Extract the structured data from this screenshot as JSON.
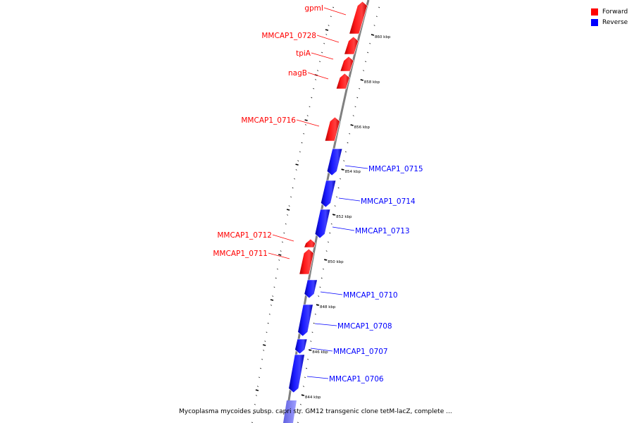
{
  "caption": "Mycoplasma mycoides subsp. capri str. GM12 transgenic clone tetM-lacZ, complete ...",
  "legend": [
    {
      "label": "Forward",
      "color": "#ff0000"
    },
    {
      "label": "Reverse",
      "color": "#0000ff"
    }
  ],
  "colors": {
    "forward": "#ff0000",
    "reverse": "#0000ff",
    "backbone": "#808080"
  },
  "ticks": [
    "860 kbp",
    "858 kbp",
    "856 kbp",
    "854 kbp",
    "852 kbp",
    "850 kbp",
    "848 kbp",
    "846 kbp",
    "844 kbp"
  ],
  "genes": [
    {
      "name": "gpmI",
      "strand": "forward"
    },
    {
      "name": "MMCAP1_0728",
      "strand": "forward"
    },
    {
      "name": "tpiA",
      "strand": "forward"
    },
    {
      "name": "nagB",
      "strand": "forward"
    },
    {
      "name": "MMCAP1_0716",
      "strand": "forward"
    },
    {
      "name": "MMCAP1_0715",
      "strand": "reverse"
    },
    {
      "name": "MMCAP1_0714",
      "strand": "reverse"
    },
    {
      "name": "MMCAP1_0713",
      "strand": "reverse"
    },
    {
      "name": "MMCAP1_0712",
      "strand": "forward"
    },
    {
      "name": "MMCAP1_0711",
      "strand": "forward"
    },
    {
      "name": "MMCAP1_0710",
      "strand": "reverse"
    },
    {
      "name": "MMCAP1_0708",
      "strand": "reverse"
    },
    {
      "name": "MMCAP1_0707",
      "strand": "reverse"
    },
    {
      "name": "MMCAP1_0706",
      "strand": "reverse"
    }
  ]
}
